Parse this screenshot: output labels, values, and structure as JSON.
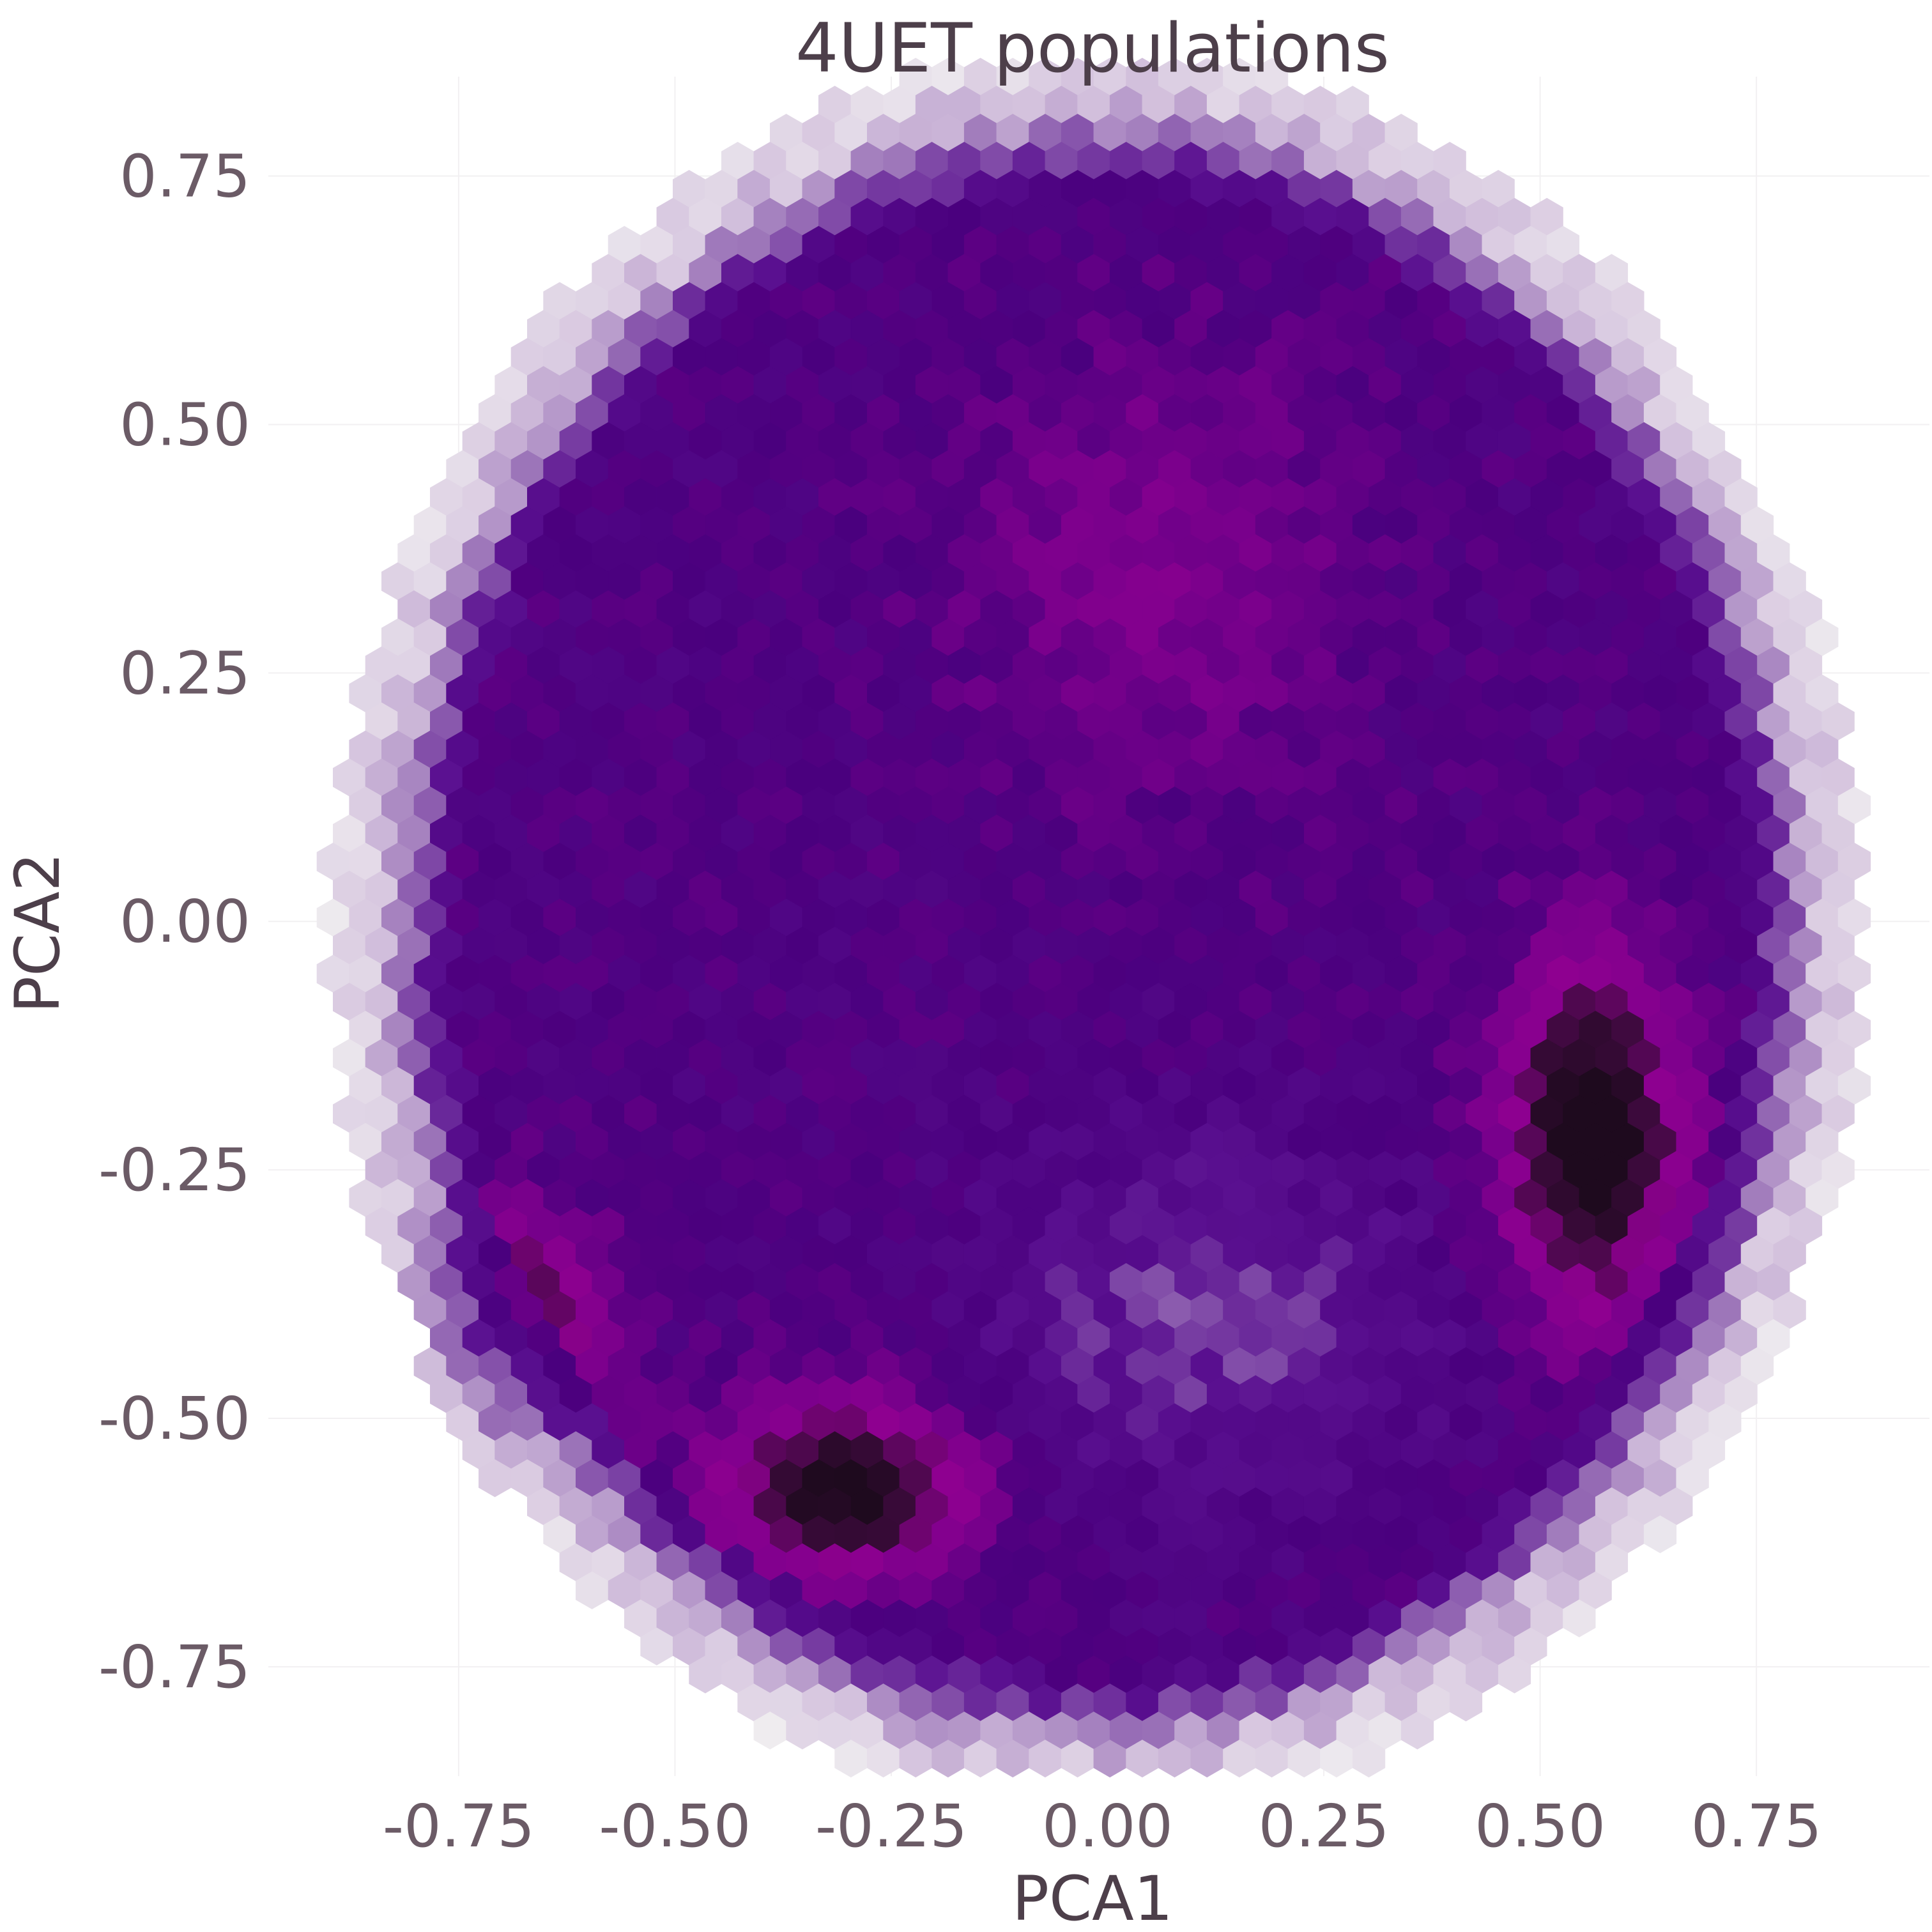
{
  "chart_data": {
    "type": "heatmap",
    "subtype": "hexbin",
    "title": "4UET populations",
    "xlabel": "PCA1",
    "ylabel": "PCA2",
    "xlim": [
      -0.97,
      0.95
    ],
    "ylim": [
      -0.86,
      0.85
    ],
    "xticks": [
      -0.75,
      -0.5,
      -0.25,
      0.0,
      0.25,
      0.5,
      0.75
    ],
    "xtick_labels": [
      "-0.75",
      "-0.50",
      "-0.25",
      "0.00",
      "0.25",
      "0.50",
      "0.75"
    ],
    "yticks": [
      -0.75,
      -0.5,
      -0.25,
      0.0,
      0.25,
      0.5,
      0.75
    ],
    "ytick_labels": [
      "-0.75",
      "-0.50",
      "-0.25",
      "0.00",
      "0.25",
      "0.50",
      "0.75"
    ],
    "grid": true,
    "legend": "none",
    "hex_size": 0.0216,
    "color_scale": [
      "#f1f0f1",
      "#d8c8e0",
      "#9b73b8",
      "#5a1090",
      "#4a007e",
      "#7a008c",
      "#8e0090",
      "#3c0a3c",
      "#1e0a1e"
    ],
    "density_model": {
      "disc": {
        "cx": -0.01,
        "cy": -0.01,
        "r": 0.83
      },
      "clusters": [
        {
          "x": -0.72,
          "y": -0.42,
          "sx": 0.08,
          "sy": 0.08,
          "w": 1.2
        },
        {
          "x": -0.3,
          "y": -0.57,
          "sx": 0.1,
          "sy": 0.06,
          "w": 1.1
        },
        {
          "x": 0.56,
          "y": -0.22,
          "sx": 0.07,
          "sy": 0.12,
          "w": 1.2
        },
        {
          "x": 0.05,
          "y": 0.35,
          "sx": 0.15,
          "sy": 0.15,
          "w": 0.3
        },
        {
          "x": 0.12,
          "y": -0.4,
          "sx": 0.18,
          "sy": 0.12,
          "w": -0.35
        }
      ]
    }
  }
}
